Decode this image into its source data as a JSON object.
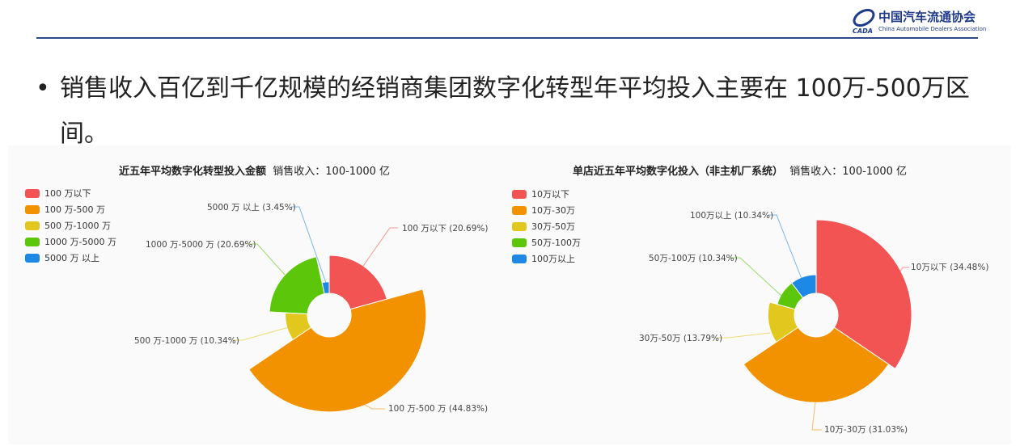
{
  "header": {
    "logo_cn": "中国汽车流通协会",
    "logo_en": "China Automobile Dealers Association"
  },
  "bullet": {
    "marker": "•",
    "text": "销售收入百亿到千亿规模的经销商集团数字化转型年平均投入主要在 100万-500万区间。"
  },
  "chart_data": [
    {
      "type": "pie",
      "rose": "radius",
      "title": "近五年平均数字化转型投入金额",
      "subtitle": "销售收入：100-1000 亿",
      "legend_position": "top-left",
      "categories": [
        "100 万以下",
        "100 万-500 万",
        "500 万-1000 万",
        "1000 万-5000 万",
        "5000 万 以上"
      ],
      "values": [
        20.69,
        44.83,
        10.34,
        20.69,
        3.45
      ],
      "labels": [
        "100 万以下 (20.69%)",
        "100 万-500 万 (44.83%)",
        "500 万-1000 万 (10.34%)",
        "1000 万-5000 万 (20.69%)",
        "5000 万 以上 (3.45%)"
      ],
      "colors": [
        "#f25353",
        "#f39200",
        "#e2c81e",
        "#5cc60a",
        "#1e88e5"
      ]
    },
    {
      "type": "pie",
      "rose": "radius",
      "title": "单店近五年平均数字化投入（非主机厂系统）",
      "subtitle": "销售收入：100-1000 亿",
      "legend_position": "top-left",
      "categories": [
        "10万以下",
        "10万-30万",
        "30万-50万",
        "50万-100万",
        "100万以上"
      ],
      "values": [
        34.48,
        31.03,
        13.79,
        10.34,
        10.34
      ],
      "labels": [
        "10万以下 (34.48%)",
        "10万-30万 (31.03%)",
        "30万-50万 (13.79%)",
        "50万-100万 (10.34%)",
        "100万以上 (10.34%)"
      ],
      "colors": [
        "#f25353",
        "#f39200",
        "#e2c81e",
        "#5cc60a",
        "#1e88e5"
      ]
    }
  ]
}
